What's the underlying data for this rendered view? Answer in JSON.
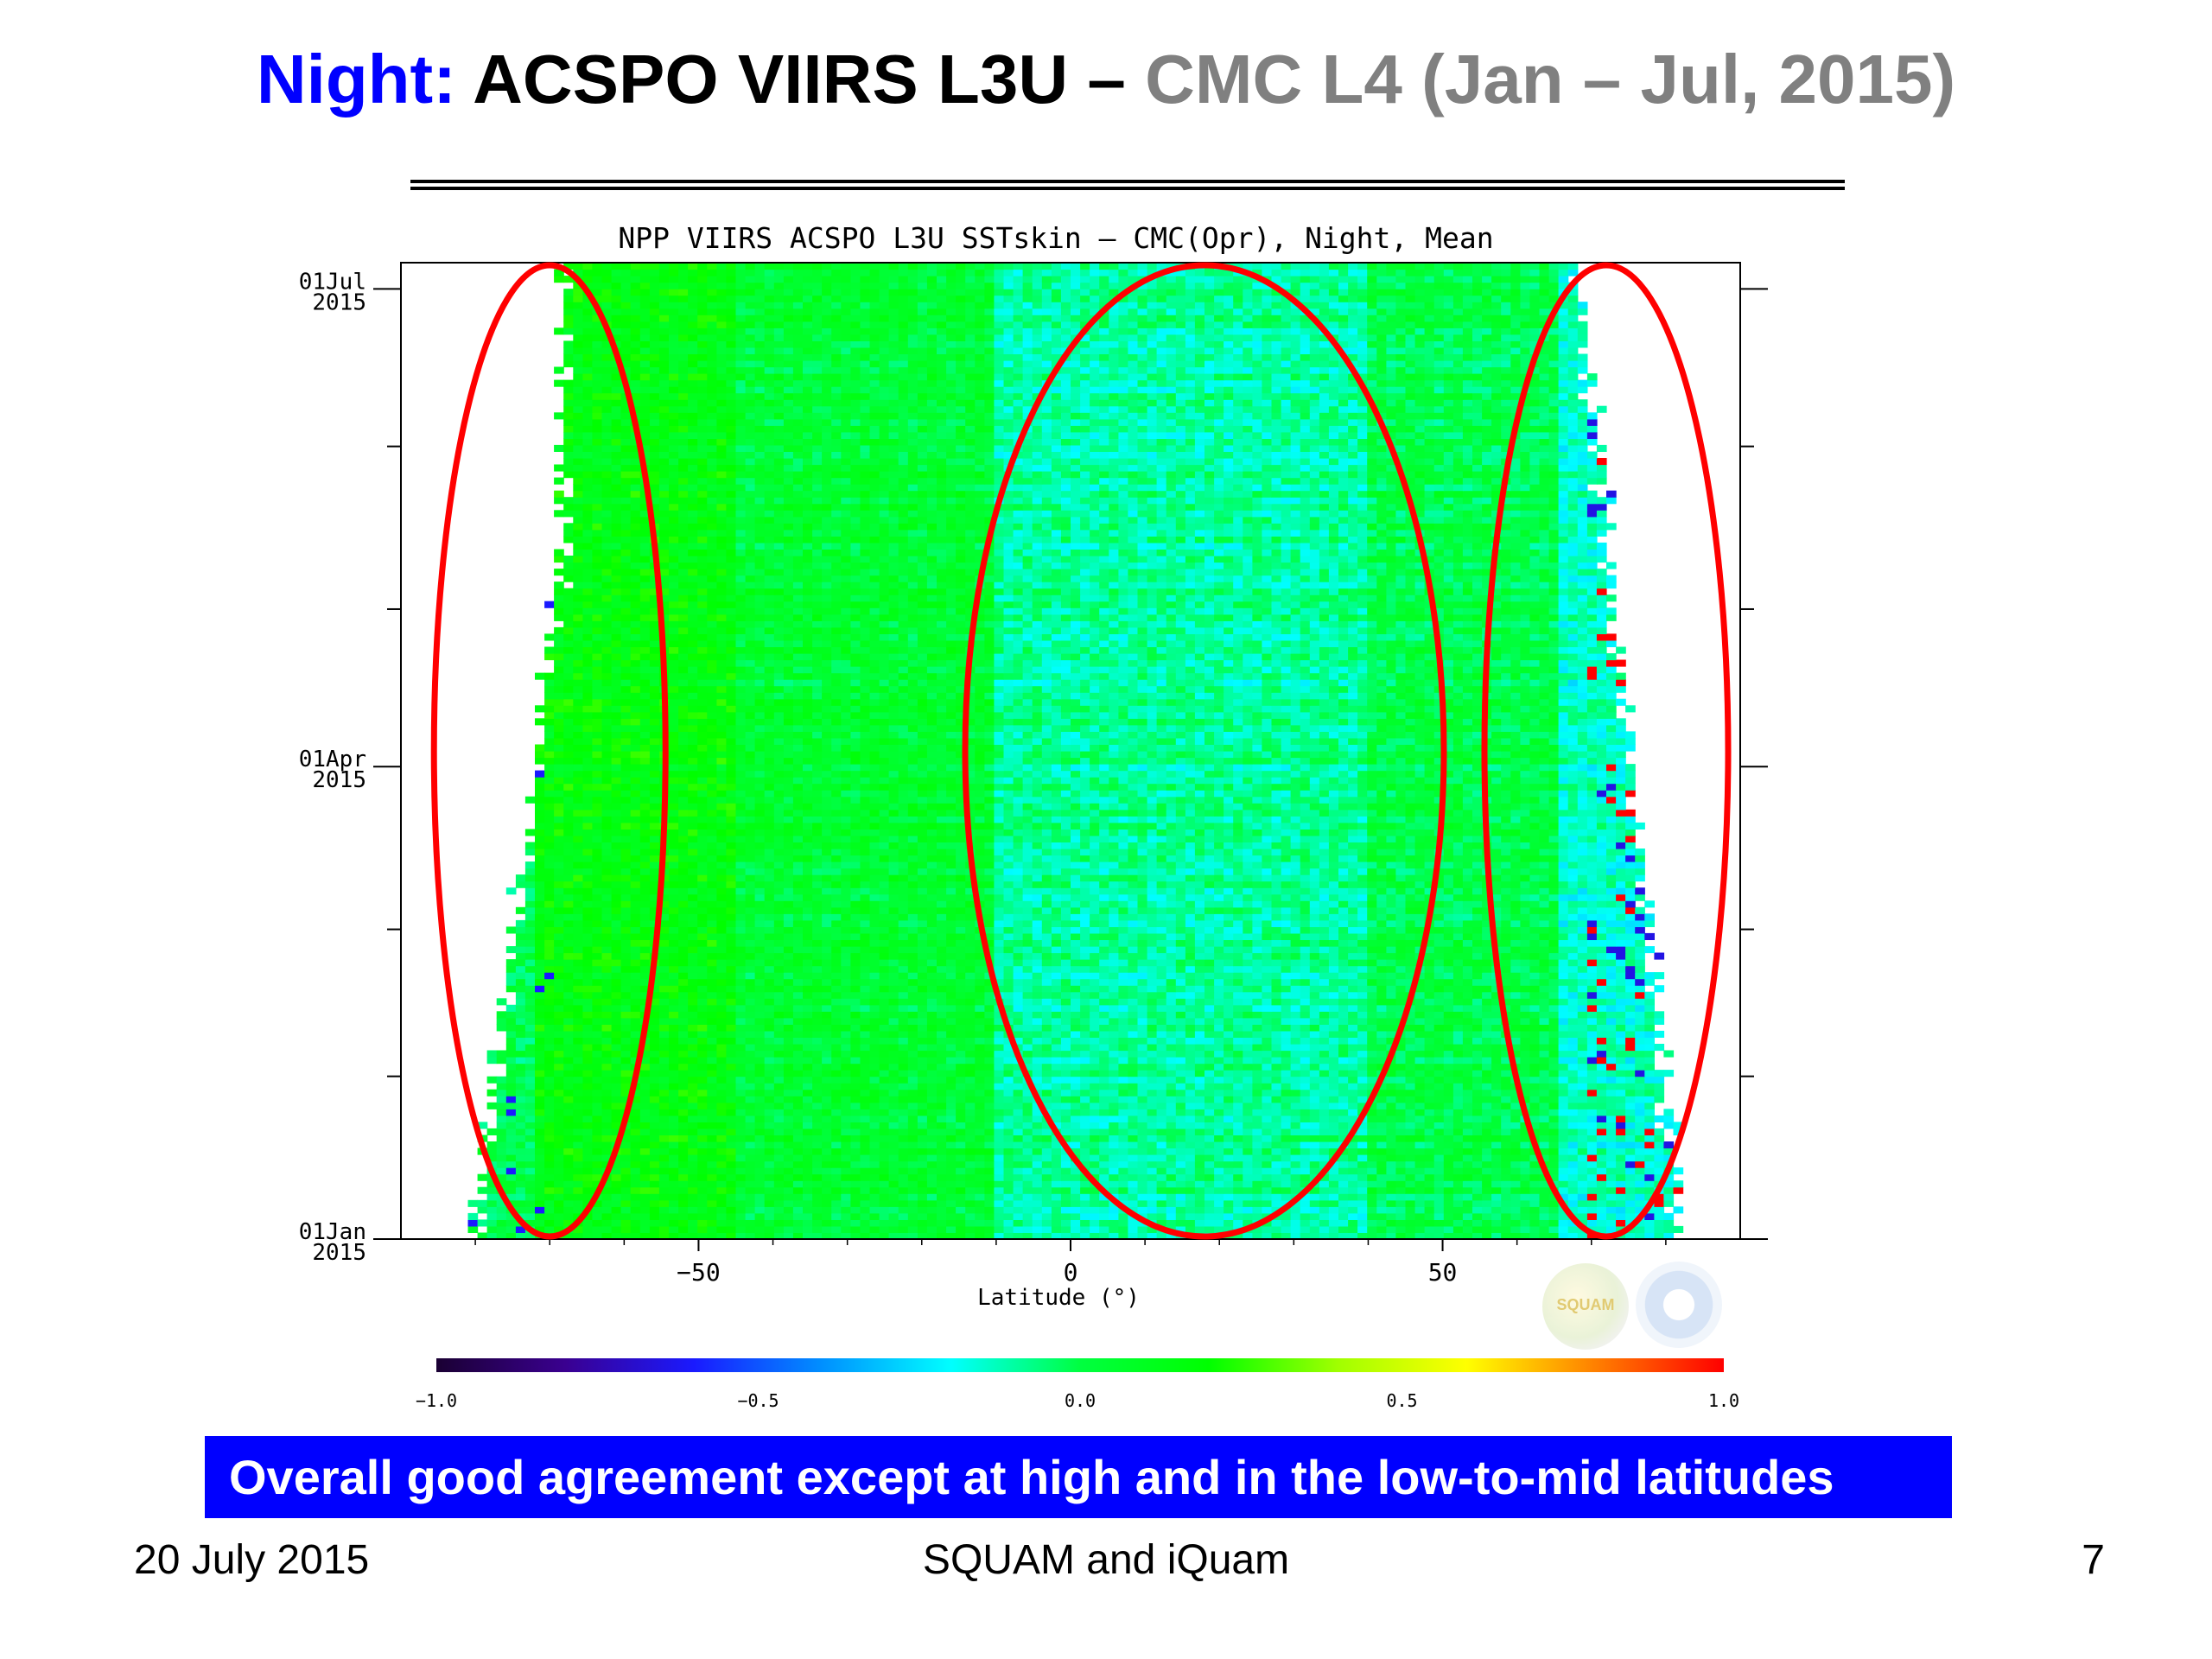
{
  "slide": {
    "title_night": "Night:",
    "title_main": "ACSPO VIIRS L3U –",
    "title_cmc": "CMC L4 (Jan – Jul, 2015)",
    "callout": "Overall good agreement except at high and in the low-to-mid latitudes",
    "footer_left": "20 July 2015",
    "footer_center": "SQUAM and iQuam",
    "footer_right": "7",
    "colors": {
      "night": "#0000ff",
      "cmc": "#808080",
      "callout_bg": "#0000ff",
      "highlight": "#ff0000"
    }
  },
  "chart_data": {
    "type": "heatmap",
    "title": "NPP VIIRS ACSPO L3U SSTskin – CMC(Opr), Night,  Mean",
    "xlabel": "Latitude  (°)",
    "ylabel": "",
    "x_ticks": [
      -50,
      0,
      50
    ],
    "x_tick_labels": [
      "−50",
      "0",
      "50"
    ],
    "xlim": [
      -90,
      90
    ],
    "y_ticks": [
      {
        "date": "2015-01-01",
        "line1": "01Jan",
        "line2": "2015"
      },
      {
        "date": "2015-04-01",
        "line1": "01Apr",
        "line2": "2015"
      },
      {
        "date": "2015-07-01",
        "line1": "01Jul",
        "line2": "2015"
      }
    ],
    "ylim": [
      "2015-01-01",
      "2015-07-06"
    ],
    "colorbar": {
      "min": -1.0,
      "max": 1.0,
      "ticks": [
        -1.0,
        -0.5,
        0.0,
        0.5,
        1.0
      ],
      "tick_labels": [
        "−1.0",
        "−0.5",
        "0.0",
        "0.5",
        "1.0"
      ],
      "colors": [
        "#1a0033",
        "#3a0090",
        "#1a1aff",
        "#0090ff",
        "#00ffff",
        "#00ff40",
        "#00ff00",
        "#a0ff00",
        "#ffff00",
        "#ff8000",
        "#ff0000"
      ]
    },
    "bands": [
      {
        "lat_range": [
          -72,
          -45
        ],
        "mean_diff": 0.15
      },
      {
        "lat_range": [
          -45,
          -10
        ],
        "mean_diff": 0.05
      },
      {
        "lat_range": [
          -10,
          40
        ],
        "mean_diff": -0.1
      },
      {
        "lat_range": [
          40,
          65
        ],
        "mean_diff": 0.0
      },
      {
        "lat_range": [
          65,
          82
        ],
        "mean_diff": -0.15
      }
    ],
    "coverage": {
      "south_edge_lat_jan": -80,
      "south_edge_lat_jul": -68,
      "north_edge_lat_jan": 82,
      "north_edge_lat_jul": 68
    },
    "highlighted_regions": [
      {
        "lat_center": -70
      },
      {
        "lat_center": 18
      },
      {
        "lat_center": 72
      }
    ]
  }
}
